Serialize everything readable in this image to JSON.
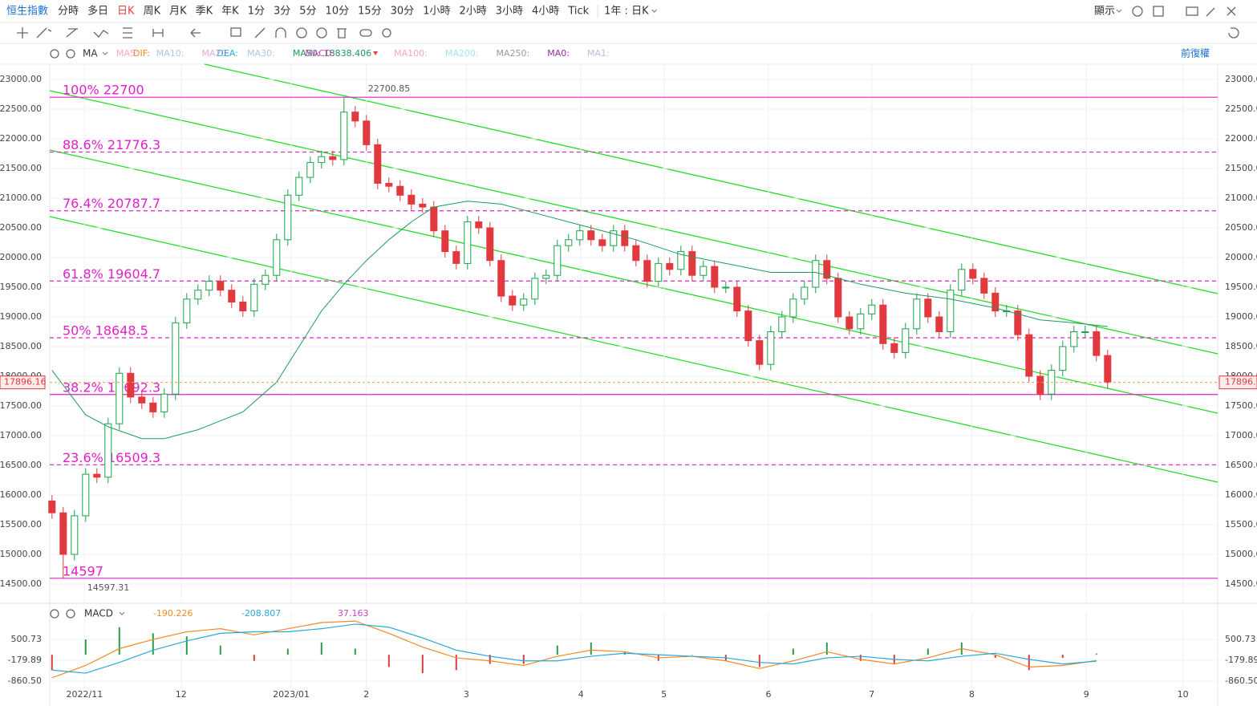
{
  "toolbar": {
    "tabs": [
      "恒生指數",
      "分時",
      "多日",
      "日K",
      "周K",
      "月K",
      "季K",
      "年K",
      "1分",
      "3分",
      "5分",
      "10分",
      "15分",
      "30分",
      "1小時",
      "2小時",
      "3小時",
      "4小時",
      "Tick"
    ],
    "active_tab": 3,
    "range": "1年 : 日K",
    "display": "顯示"
  },
  "indicator_bar": {
    "ma": "MA",
    "inactive_before": [
      {
        "text": "MA5:",
        "color": "#f6a8cf"
      },
      {
        "text": "MA10:",
        "color": "#a9c8ec"
      },
      {
        "text": "MA20:",
        "color": "#f3a6d6"
      },
      {
        "text": "MA30:",
        "color": "#a9c8ec"
      }
    ],
    "inactive_after": [
      {
        "text": "MA100:",
        "color": "#f3a6c6"
      },
      {
        "text": "MA200:",
        "color": "#a8e2ee"
      },
      {
        "text": "MA250:",
        "color": "#9a9a9a"
      },
      {
        "text": "MA0:",
        "color": "#9a2aa8"
      },
      {
        "text": "MA1:",
        "color": "#c9b7e6"
      }
    ],
    "adjust": "前復權"
  },
  "chart_data": [
    {
      "type": "candlestick",
      "up_color": "#1aa34a",
      "down_color": "#e0393e",
      "xlim": [
        -0.2,
        103.8
      ],
      "ylim": [
        14175.7,
        23256.8
      ],
      "xticks": [
        {
          "value": 2.9,
          "label": "2022/11"
        },
        {
          "value": 11.5,
          "label": "12"
        },
        {
          "value": 21.3,
          "label": "2023/01"
        },
        {
          "value": 28,
          "label": "2"
        },
        {
          "value": 36.9,
          "label": "3"
        },
        {
          "value": 47.1,
          "label": "4"
        },
        {
          "value": 54.5,
          "label": "5"
        },
        {
          "value": 63.8,
          "label": "6"
        },
        {
          "value": 73,
          "label": "7"
        },
        {
          "value": 81.9,
          "label": "8"
        },
        {
          "value": 92.1,
          "label": "9"
        },
        {
          "value": 100.7,
          "label": "10"
        }
      ],
      "yticks": [
        {
          "value": 14500,
          "label": "14500.00"
        },
        {
          "value": 15000,
          "label": "15000.00"
        },
        {
          "value": 15500,
          "label": "15500.00"
        },
        {
          "value": 16000,
          "label": "16000.00"
        },
        {
          "value": 16500,
          "label": "16500.00"
        },
        {
          "value": 17000,
          "label": "17000.00"
        },
        {
          "value": 17500,
          "label": "17500.00"
        },
        {
          "value": 18000,
          "label": "18000.00"
        },
        {
          "value": 18500,
          "label": "18500.00"
        },
        {
          "value": 19000,
          "label": "19000.00"
        },
        {
          "value": 19500,
          "label": "19500.00"
        },
        {
          "value": 20000,
          "label": "20000.00"
        },
        {
          "value": 20500,
          "label": "20500.00"
        },
        {
          "value": 21000,
          "label": "21000.00"
        },
        {
          "value": 21500,
          "label": "21500.00"
        },
        {
          "value": 22000,
          "label": "22000.00"
        },
        {
          "value": 22500,
          "label": "22500.00"
        },
        {
          "value": 23000,
          "label": "23000.00"
        }
      ],
      "grid": true,
      "x": [
        0,
        1,
        2,
        3,
        4,
        5,
        6,
        7,
        8,
        9,
        10,
        11,
        12,
        13,
        14,
        15,
        16,
        17,
        18,
        19,
        20,
        21,
        22,
        23,
        24,
        25,
        26,
        27,
        28,
        29,
        30,
        31,
        32,
        33,
        34,
        35,
        36,
        37,
        38,
        39,
        40,
        41,
        42,
        43,
        44,
        45,
        46,
        47,
        48,
        49,
        50,
        51,
        52,
        53,
        54,
        55,
        56,
        57,
        58,
        59,
        60,
        61,
        62,
        63,
        64,
        65,
        66,
        67,
        68,
        69,
        70,
        71,
        72,
        73,
        74,
        75,
        76,
        77,
        78,
        79,
        80,
        81,
        82,
        83,
        84,
        85,
        86,
        87,
        88,
        89,
        90,
        91,
        92,
        93,
        94
      ],
      "open": [
        15900,
        15700,
        15000,
        15650,
        16350,
        16300,
        17200,
        18050,
        17650,
        17550,
        17400,
        17700,
        18900,
        19300,
        19450,
        19600,
        19450,
        19250,
        19100,
        19550,
        19700,
        20300,
        21050,
        21350,
        21600,
        21700,
        21650,
        22450,
        22300,
        21900,
        21250,
        21200,
        21050,
        20900,
        20850,
        20450,
        20100,
        19900,
        20600,
        20500,
        19950,
        19350,
        19200,
        19300,
        19650,
        19700,
        20200,
        20300,
        20450,
        20300,
        20200,
        20450,
        20200,
        19950,
        19600,
        19900,
        19800,
        20100,
        19700,
        19850,
        19500,
        19500,
        19100,
        18600,
        18200,
        18750,
        19000,
        19300,
        19500,
        19950,
        19650,
        19000,
        18800,
        19050,
        19200,
        18550,
        18400,
        18800,
        19300,
        19000,
        18750,
        19450,
        19800,
        19650,
        19400,
        19100,
        19100,
        18700,
        18000,
        17700,
        18100,
        18500,
        18750,
        18750,
        18350
      ],
      "high": [
        16000,
        15800,
        15750,
        16450,
        16450,
        17300,
        18150,
        18150,
        17750,
        17650,
        17800,
        19000,
        19400,
        19550,
        19700,
        19700,
        19550,
        19350,
        19650,
        19800,
        20400,
        21150,
        21450,
        21700,
        21800,
        21800,
        22700.85,
        22550,
        22400,
        22000,
        21350,
        21300,
        21150,
        21000,
        20950,
        20550,
        20200,
        20700,
        20700,
        20600,
        20050,
        19450,
        19400,
        19750,
        19800,
        20300,
        20400,
        20550,
        20550,
        20400,
        20550,
        20550,
        20300,
        20050,
        20000,
        20000,
        20200,
        20200,
        19950,
        19950,
        19600,
        19600,
        19200,
        18700,
        18850,
        19100,
        19400,
        19600,
        20050,
        20050,
        19750,
        19100,
        19150,
        19300,
        19300,
        18650,
        18900,
        19400,
        19400,
        19100,
        19550,
        19900,
        19900,
        19750,
        19500,
        19200,
        19200,
        18800,
        18100,
        18200,
        18600,
        18850,
        18850,
        18850,
        18450
      ],
      "low": [
        15600,
        14597.31,
        14900,
        15550,
        16200,
        16200,
        17100,
        17550,
        17450,
        17300,
        17300,
        17600,
        18800,
        19200,
        19350,
        19350,
        19150,
        19000,
        19000,
        19450,
        19600,
        20200,
        20950,
        21250,
        21500,
        21550,
        21550,
        22200,
        21800,
        21150,
        21100,
        20950,
        20800,
        20750,
        20350,
        20000,
        19800,
        19800,
        20400,
        19850,
        19250,
        19100,
        19100,
        19200,
        19550,
        19600,
        20100,
        20200,
        20200,
        20100,
        20100,
        20100,
        19850,
        19500,
        19500,
        19700,
        19700,
        19600,
        19600,
        19400,
        19400,
        19000,
        18500,
        18100,
        18100,
        18650,
        18900,
        19200,
        19400,
        19550,
        18900,
        18700,
        18700,
        18950,
        18450,
        18300,
        18300,
        18700,
        18900,
        18650,
        18650,
        19350,
        19550,
        19300,
        19000,
        19000,
        18600,
        17900,
        17600,
        17600,
        18000,
        18400,
        18650,
        18250,
        17796
      ],
      "close": [
        15700,
        15000,
        15650,
        16350,
        16300,
        17200,
        18050,
        17650,
        17550,
        17400,
        17700,
        18900,
        19300,
        19450,
        19600,
        19450,
        19250,
        19100,
        19550,
        19700,
        20300,
        21050,
        21350,
        21600,
        21700,
        21650,
        22450,
        22300,
        21900,
        21250,
        21200,
        21050,
        20900,
        20850,
        20450,
        20100,
        19900,
        20600,
        20500,
        19950,
        19350,
        19200,
        19300,
        19650,
        19700,
        20200,
        20300,
        20450,
        20300,
        20200,
        20450,
        20200,
        19950,
        19600,
        19900,
        19800,
        20100,
        19700,
        19850,
        19500,
        19500,
        19100,
        18600,
        18200,
        18750,
        19000,
        19300,
        19500,
        19950,
        19650,
        19000,
        18800,
        19050,
        19200,
        18550,
        18400,
        18800,
        19300,
        19000,
        18750,
        19450,
        19800,
        19650,
        19400,
        19100,
        19100,
        18700,
        18000,
        17700,
        18100,
        18500,
        18750,
        18750,
        18350,
        17896.16
      ],
      "ma": {
        "name": "MA50:",
        "color": "#1a9c5a",
        "x": [
          0,
          3,
          5,
          8,
          10,
          13,
          17,
          20,
          22,
          24,
          26,
          28,
          30,
          32,
          34,
          37,
          40,
          44,
          48,
          52,
          56,
          60,
          64,
          68,
          72,
          76,
          80,
          84,
          88,
          91,
          94
        ],
        "values": [
          18100,
          17350,
          17150,
          16950,
          16950,
          17100,
          17400,
          17900,
          18500,
          19100,
          19550,
          19950,
          20300,
          20600,
          20850,
          20950,
          20900,
          20700,
          20500,
          20300,
          20050,
          19900,
          19750,
          19750,
          19550,
          19400,
          19300,
          19150,
          18950,
          18900,
          18838.406
        ]
      },
      "level_color": "#e020c8",
      "levels": [
        {
          "label": "100% 22700",
          "value": 22700,
          "style": "solid"
        },
        {
          "label": "88.6% 21776.3",
          "value": 21776.3,
          "style": "dashed"
        },
        {
          "label": "76.4% 20787.7",
          "value": 20787.7,
          "style": "dashed"
        },
        {
          "label": "61.8% 19604.7",
          "value": 19604.7,
          "style": "dashed"
        },
        {
          "label": "50% 18648.5",
          "value": 18648.5,
          "style": "dashed"
        },
        {
          "label": "38.2% 17692.3",
          "value": 17692.3,
          "style": "solid"
        },
        {
          "label": "23.6% 16509.3",
          "value": 16509.3,
          "style": "dashed"
        },
        {
          "label": "14597",
          "value": 14597,
          "style": "solid"
        }
      ]
    },
    {
      "type": "macd",
      "title": "MACD",
      "xlim": [
        -0.2,
        103.8
      ],
      "ylim": [
        -1096,
        1129
      ],
      "yticks": [
        500.73,
        -179.89,
        {
          "value": -860.5,
          "label": "-860.50"
        }
      ],
      "x": [
        0,
        3,
        6,
        9,
        12,
        15,
        18,
        21,
        24,
        27,
        30,
        33,
        36,
        39,
        42,
        45,
        48,
        51,
        54,
        57,
        60,
        63,
        66,
        69,
        72,
        75,
        78,
        81,
        84,
        87,
        90,
        93
      ],
      "series": [
        {
          "name": "DIF:",
          "color": "#f08a24",
          "values": [
            -750,
            -350,
            200,
            500,
            750,
            850,
            650,
            850,
            1050,
            1100,
            700,
            250,
            -100,
            -200,
            -350,
            -50,
            150,
            100,
            -100,
            -50,
            -200,
            -450,
            -200,
            100,
            -150,
            -300,
            -100,
            200,
            0,
            -400,
            -350,
            -190.226
          ]
        },
        {
          "name": "DEA:",
          "color": "#2aa8d8",
          "values": [
            -500,
            -600,
            -250,
            150,
            450,
            700,
            750,
            750,
            850,
            1000,
            900,
            550,
            150,
            -50,
            -200,
            -200,
            -50,
            50,
            0,
            -50,
            -100,
            -250,
            -300,
            -100,
            -50,
            -150,
            -200,
            -50,
            50,
            -150,
            -300,
            -208.807
          ]
        }
      ],
      "histogram": {
        "name": "MACD:",
        "color": "#d63fbf",
        "up_color": "#2a9d4a",
        "down_color": "#d04040",
        "values": [
          -500,
          500,
          900,
          700,
          600,
          300,
          -200,
          200,
          400,
          200,
          -400,
          -600,
          -500,
          -300,
          -300,
          300,
          400,
          100,
          -200,
          0,
          -200,
          -400,
          200,
          400,
          -200,
          -300,
          200,
          400,
          -100,
          -500,
          -100,
          37.163
        ]
      }
    }
  ]
}
